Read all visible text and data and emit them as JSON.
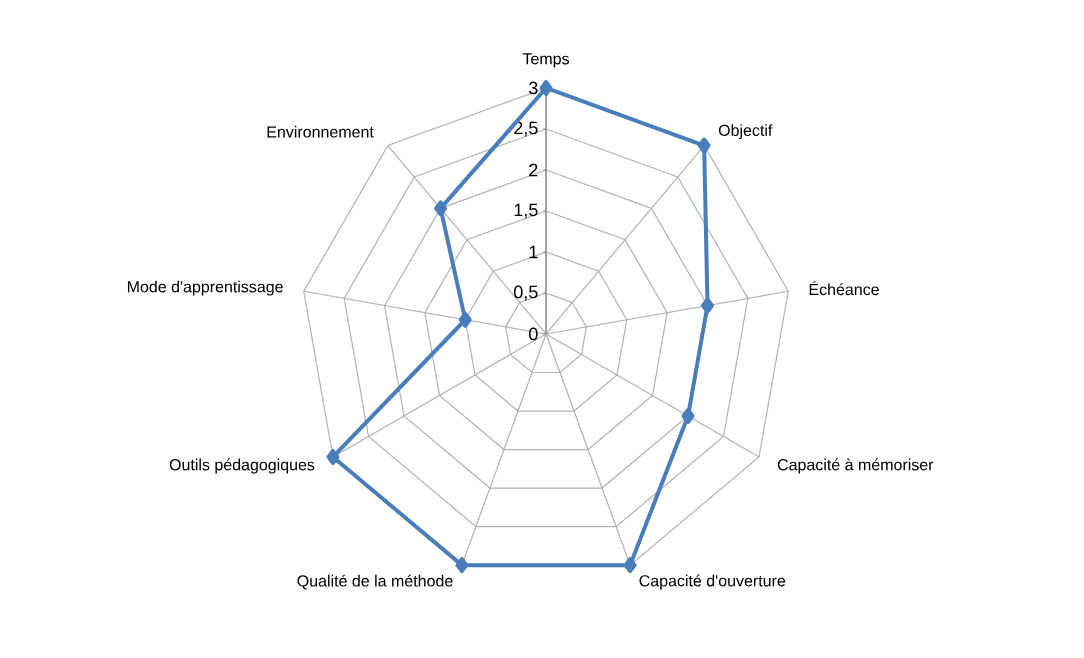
{
  "chart_data": {
    "type": "radar",
    "categories": [
      "Temps",
      "Objectif",
      "Échéance",
      "Capacité à mémoriser",
      "Capacité d'ouverture",
      "Qualité de la méthode",
      "Outils pédagogiques",
      "Mode d'apprentissage",
      "Environnement"
    ],
    "series": [
      {
        "color": "#4a7ebb",
        "values": [
          3,
          3,
          2,
          2,
          3,
          3,
          3,
          1,
          2
        ]
      }
    ],
    "ylim": [
      0,
      3
    ],
    "yticks": [
      0,
      {
        "value": 0.5,
        "label": "0,5"
      },
      1,
      {
        "value": 1.5,
        "label": "1,5"
      },
      2,
      {
        "value": 2.5,
        "label": "2,5"
      },
      3
    ],
    "grid": true,
    "marker": "diamond"
  }
}
